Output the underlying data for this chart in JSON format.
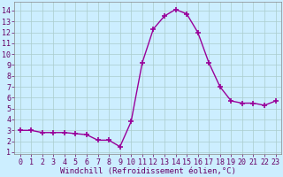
{
  "x": [
    0,
    1,
    2,
    3,
    4,
    5,
    6,
    7,
    8,
    9,
    10,
    11,
    12,
    13,
    14,
    15,
    16,
    17,
    18,
    19,
    20,
    21,
    22,
    23
  ],
  "y": [
    3.0,
    3.0,
    2.8,
    2.8,
    2.8,
    2.7,
    2.6,
    2.1,
    2.1,
    1.5,
    3.8,
    9.2,
    12.3,
    13.5,
    14.1,
    13.7,
    12.0,
    9.2,
    7.0,
    5.7,
    5.5,
    5.5,
    5.3,
    5.7
  ],
  "line_color": "#990099",
  "marker": "+",
  "marker_size": 5,
  "marker_lw": 1.2,
  "xlabel": "Windchill (Refroidissement éolien,°C)",
  "xlabel_fontsize": 6.5,
  "ylabel_ticks": [
    1,
    2,
    3,
    4,
    5,
    6,
    7,
    8,
    9,
    10,
    11,
    12,
    13,
    14
  ],
  "xlim": [
    -0.5,
    23.5
  ],
  "ylim": [
    0.8,
    14.8
  ],
  "bg_color": "#cceeff",
  "grid_color": "#aacccc",
  "tick_fontsize": 6.0,
  "line_width": 1.0
}
